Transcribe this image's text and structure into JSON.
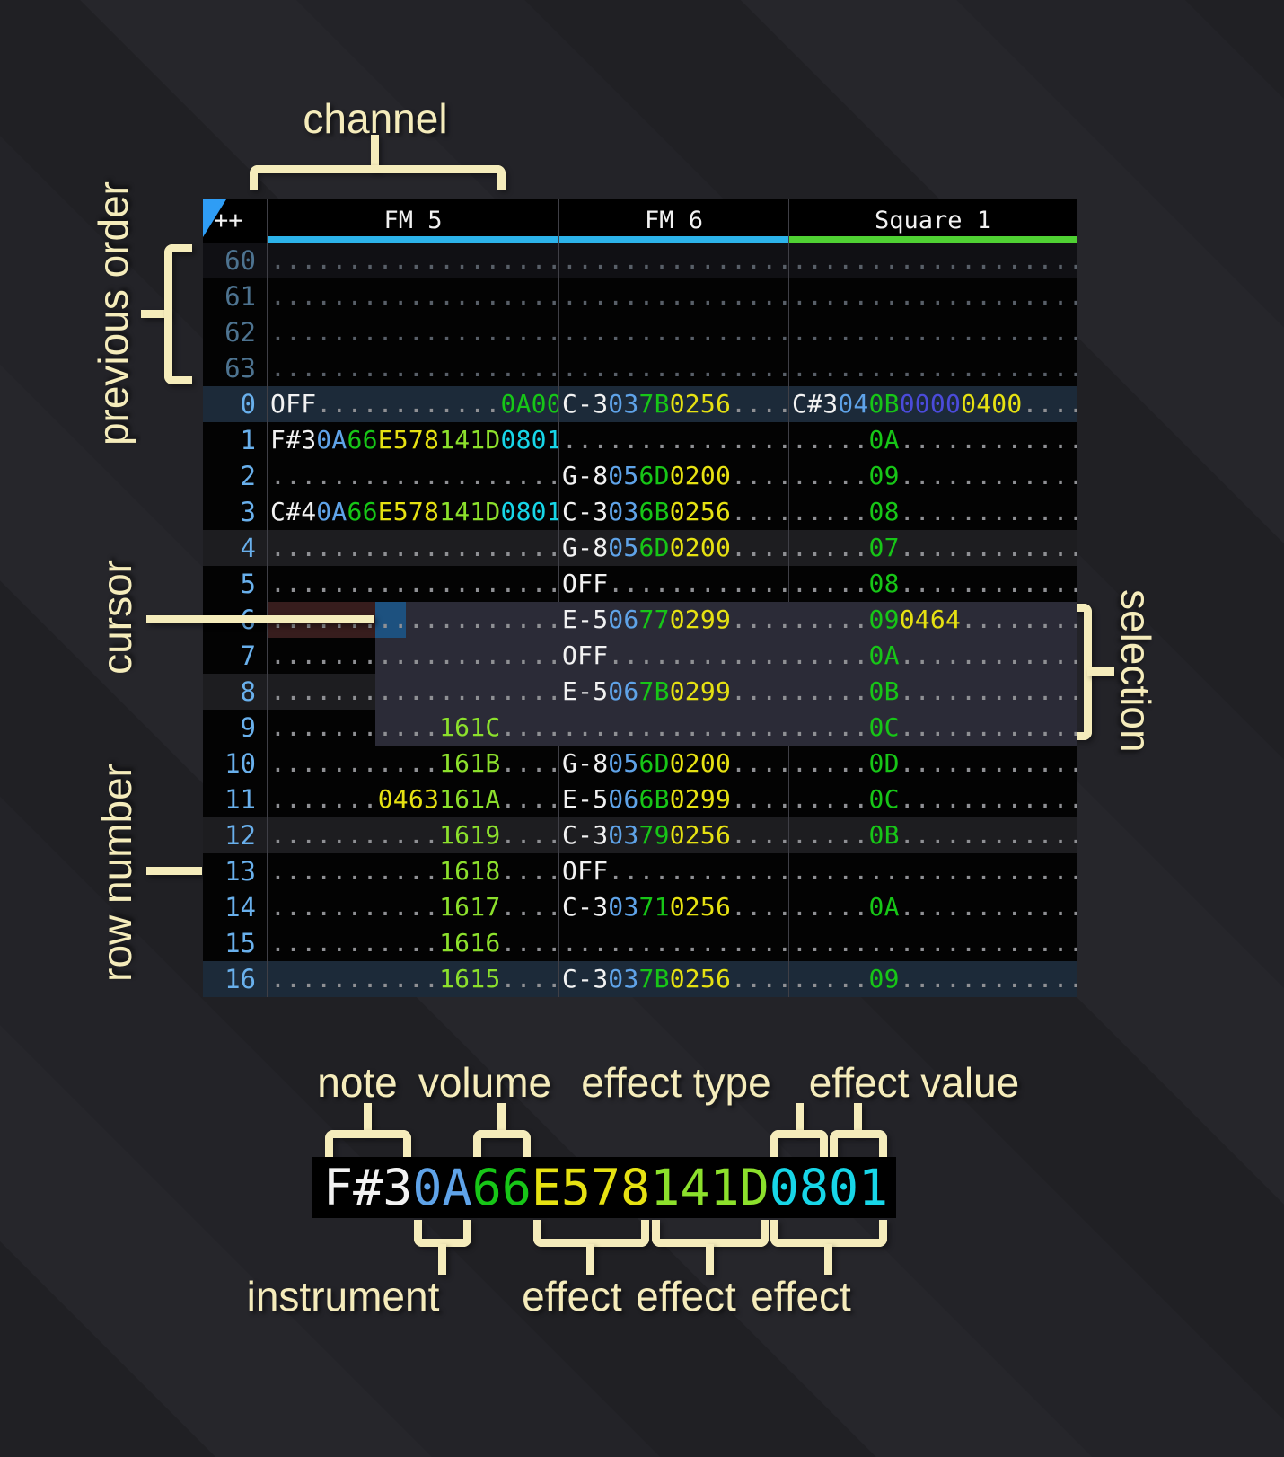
{
  "annotations": {
    "channel": "channel",
    "previous_order": "previous order",
    "cursor": "cursor",
    "row_number": "row number",
    "selection": "selection",
    "note": "note",
    "volume": "volume",
    "effect_type": "effect type",
    "effect_value": "effect value",
    "instrument": "instrument",
    "effect1": "effect",
    "effect2": "effect",
    "effect3": "effect"
  },
  "pattern": {
    "corner": "++",
    "channels": [
      {
        "label": "FM 5",
        "underline": "#2cb3ea"
      },
      {
        "label": "FM 6",
        "underline": "#2cb3ea"
      },
      {
        "label": "Square 1",
        "underline": "#4fd133"
      }
    ],
    "prev_rows": [
      {
        "num": "60",
        "bg": "prevminor"
      },
      {
        "num": "61",
        "bg": ""
      },
      {
        "num": "62",
        "bg": ""
      },
      {
        "num": "63",
        "bg": ""
      }
    ],
    "rows": [
      {
        "num": "0",
        "bg": "major",
        "fm5": [
          [
            "OFF",
            "n"
          ],
          [
            "............",
            "d"
          ],
          [
            "0A00",
            "v"
          ]
        ],
        "fm6": [
          [
            "C-3",
            "n"
          ],
          [
            "03",
            "i"
          ],
          [
            "7B",
            "v"
          ],
          [
            "0256",
            "y"
          ],
          [
            "....",
            "d"
          ]
        ],
        "sq1": [
          [
            "C#3",
            "n"
          ],
          [
            "04",
            "i"
          ],
          [
            "0B",
            "v"
          ],
          [
            "0000",
            "p"
          ],
          [
            "0400",
            "y"
          ],
          [
            "....",
            "d"
          ]
        ]
      },
      {
        "num": "1",
        "bg": "",
        "fm5": [
          [
            "F#3",
            "n"
          ],
          [
            "0A",
            "i"
          ],
          [
            "66",
            "v"
          ],
          [
            "E578",
            "y"
          ],
          [
            "141D",
            "l"
          ],
          [
            "0801",
            "c"
          ]
        ],
        "fm6": [
          [
            "...............",
            "d"
          ]
        ],
        "sq1": [
          [
            ".....",
            "d"
          ],
          [
            "0A",
            "v"
          ],
          [
            "............",
            "d"
          ]
        ]
      },
      {
        "num": "2",
        "bg": "",
        "fm5": [
          [
            "...................",
            "d"
          ]
        ],
        "fm6": [
          [
            "G-8",
            "n"
          ],
          [
            "05",
            "i"
          ],
          [
            "6D",
            "v"
          ],
          [
            "0200",
            "y"
          ],
          [
            "....",
            "d"
          ]
        ],
        "sq1": [
          [
            ".....",
            "d"
          ],
          [
            "09",
            "v"
          ],
          [
            "............",
            "d"
          ]
        ]
      },
      {
        "num": "3",
        "bg": "",
        "fm5": [
          [
            "C#4",
            "n"
          ],
          [
            "0A",
            "i"
          ],
          [
            "66",
            "v"
          ],
          [
            "E578",
            "y"
          ],
          [
            "141D",
            "l"
          ],
          [
            "0801",
            "c"
          ]
        ],
        "fm6": [
          [
            "C-3",
            "n"
          ],
          [
            "03",
            "i"
          ],
          [
            "6B",
            "v"
          ],
          [
            "0256",
            "y"
          ],
          [
            "....",
            "d"
          ]
        ],
        "sq1": [
          [
            ".....",
            "d"
          ],
          [
            "08",
            "v"
          ],
          [
            "............",
            "d"
          ]
        ]
      },
      {
        "num": "4",
        "bg": "minor",
        "fm5": [
          [
            "...................",
            "d"
          ]
        ],
        "fm6": [
          [
            "G-8",
            "n"
          ],
          [
            "05",
            "i"
          ],
          [
            "6D",
            "v"
          ],
          [
            "0200",
            "y"
          ],
          [
            "....",
            "d"
          ]
        ],
        "sq1": [
          [
            ".....",
            "d"
          ],
          [
            "07",
            "v"
          ],
          [
            "............",
            "d"
          ]
        ]
      },
      {
        "num": "5",
        "bg": "",
        "fm5": [
          [
            "...................",
            "d"
          ]
        ],
        "fm6": [
          [
            "OFF",
            "n"
          ],
          [
            "............",
            "d"
          ]
        ],
        "sq1": [
          [
            ".....",
            "d"
          ],
          [
            "08",
            "v"
          ],
          [
            "............",
            "d"
          ]
        ]
      },
      {
        "num": "6",
        "bg": "",
        "fm5": [
          [
            "...................",
            "d"
          ]
        ],
        "fm6": [
          [
            "E-5",
            "n"
          ],
          [
            "06",
            "i"
          ],
          [
            "77",
            "v"
          ],
          [
            "0299",
            "y"
          ],
          [
            "....",
            "d"
          ]
        ],
        "sq1": [
          [
            ".....",
            "d"
          ],
          [
            "09",
            "v"
          ],
          [
            "0464",
            "y"
          ],
          [
            "........",
            "d"
          ]
        ]
      },
      {
        "num": "7",
        "bg": "",
        "fm5": [
          [
            "...................",
            "d"
          ]
        ],
        "fm6": [
          [
            "OFF",
            "n"
          ],
          [
            "............",
            "d"
          ]
        ],
        "sq1": [
          [
            ".....",
            "d"
          ],
          [
            "0A",
            "v"
          ],
          [
            "............",
            "d"
          ]
        ]
      },
      {
        "num": "8",
        "bg": "minor",
        "fm5": [
          [
            "...................",
            "d"
          ]
        ],
        "fm6": [
          [
            "E-5",
            "n"
          ],
          [
            "06",
            "i"
          ],
          [
            "7B",
            "v"
          ],
          [
            "0299",
            "y"
          ],
          [
            "....",
            "d"
          ]
        ],
        "sq1": [
          [
            ".....",
            "d"
          ],
          [
            "0B",
            "v"
          ],
          [
            "............",
            "d"
          ]
        ]
      },
      {
        "num": "9",
        "bg": "",
        "fm5": [
          [
            "...........",
            "d"
          ],
          [
            "161C",
            "l"
          ],
          [
            "....",
            "d"
          ]
        ],
        "fm6": [
          [
            "...............",
            "d"
          ]
        ],
        "sq1": [
          [
            ".....",
            "d"
          ],
          [
            "0C",
            "v"
          ],
          [
            "............",
            "d"
          ]
        ]
      },
      {
        "num": "10",
        "bg": "",
        "fm5": [
          [
            "...........",
            "d"
          ],
          [
            "161B",
            "l"
          ],
          [
            "....",
            "d"
          ]
        ],
        "fm6": [
          [
            "G-8",
            "n"
          ],
          [
            "05",
            "i"
          ],
          [
            "6D",
            "v"
          ],
          [
            "0200",
            "y"
          ],
          [
            "....",
            "d"
          ]
        ],
        "sq1": [
          [
            ".....",
            "d"
          ],
          [
            "0D",
            "v"
          ],
          [
            "............",
            "d"
          ]
        ]
      },
      {
        "num": "11",
        "bg": "",
        "fm5": [
          [
            ".......",
            "d"
          ],
          [
            "0463",
            "y"
          ],
          [
            "161A",
            "l"
          ],
          [
            "....",
            "d"
          ]
        ],
        "fm6": [
          [
            "E-5",
            "n"
          ],
          [
            "06",
            "i"
          ],
          [
            "6B",
            "v"
          ],
          [
            "0299",
            "y"
          ],
          [
            "....",
            "d"
          ]
        ],
        "sq1": [
          [
            ".....",
            "d"
          ],
          [
            "0C",
            "v"
          ],
          [
            "............",
            "d"
          ]
        ]
      },
      {
        "num": "12",
        "bg": "minor",
        "fm5": [
          [
            "...........",
            "d"
          ],
          [
            "1619",
            "l"
          ],
          [
            "....",
            "d"
          ]
        ],
        "fm6": [
          [
            "C-3",
            "n"
          ],
          [
            "03",
            "i"
          ],
          [
            "79",
            "v"
          ],
          [
            "0256",
            "y"
          ],
          [
            "....",
            "d"
          ]
        ],
        "sq1": [
          [
            ".....",
            "d"
          ],
          [
            "0B",
            "v"
          ],
          [
            "............",
            "d"
          ]
        ]
      },
      {
        "num": "13",
        "bg": "",
        "fm5": [
          [
            "...........",
            "d"
          ],
          [
            "1618",
            "l"
          ],
          [
            "....",
            "d"
          ]
        ],
        "fm6": [
          [
            "OFF",
            "n"
          ],
          [
            "............",
            "d"
          ]
        ],
        "sq1": [
          [
            "...................",
            "d"
          ]
        ]
      },
      {
        "num": "14",
        "bg": "",
        "fm5": [
          [
            "...........",
            "d"
          ],
          [
            "1617",
            "l"
          ],
          [
            "....",
            "d"
          ]
        ],
        "fm6": [
          [
            "C-3",
            "n"
          ],
          [
            "03",
            "i"
          ],
          [
            "71",
            "v"
          ],
          [
            "0256",
            "y"
          ],
          [
            "....",
            "d"
          ]
        ],
        "sq1": [
          [
            ".....",
            "d"
          ],
          [
            "0A",
            "v"
          ],
          [
            "............",
            "d"
          ]
        ]
      },
      {
        "num": "15",
        "bg": "",
        "fm5": [
          [
            "...........",
            "d"
          ],
          [
            "1616",
            "l"
          ],
          [
            "....",
            "d"
          ]
        ],
        "fm6": [
          [
            "...............",
            "d"
          ]
        ],
        "sq1": [
          [
            "...................",
            "d"
          ]
        ]
      },
      {
        "num": "16",
        "bg": "major",
        "fm5": [
          [
            "...........",
            "d"
          ],
          [
            "1615",
            "l"
          ],
          [
            "....",
            "d"
          ]
        ],
        "fm6": [
          [
            "C-3",
            "n"
          ],
          [
            "03",
            "i"
          ],
          [
            "7B",
            "v"
          ],
          [
            "0256",
            "y"
          ],
          [
            "....",
            "d"
          ]
        ],
        "sq1": [
          [
            ".....",
            "d"
          ],
          [
            "09",
            "v"
          ],
          [
            "............",
            "d"
          ]
        ]
      }
    ]
  },
  "state": {
    "cursor_row": 6,
    "cursor_channel": "FM 5",
    "cursor_column": "effect-1-type",
    "selection_from_row": 6,
    "selection_to_row": 9
  },
  "legend": {
    "segments": [
      [
        "F#3",
        "n"
      ],
      [
        "0A",
        "i"
      ],
      [
        "66",
        "v"
      ],
      [
        "E578",
        "y"
      ],
      [
        "141D",
        "l"
      ],
      [
        "0801",
        "c"
      ]
    ]
  },
  "colors": {
    "text": {
      "n": "#f2f2f2",
      "i": "#5fa3e8",
      "v": "#17c617",
      "y": "#e6e112",
      "l": "#8ce02c",
      "c": "#17d6e8",
      "p": "#4b4bdb",
      "d": "#8f9094",
      "pd": "#585f68"
    },
    "css_vars": {
      "cream": "#f5ecbb",
      "cursor": "#1d517f",
      "sel": "#2b2b37",
      "maroon": "#371d1d",
      "major": "#1c2a39",
      "minor": "#1d1d20",
      "rownum": "#69b0ec",
      "prevnum": "#4d7390",
      "divider": "#3f3f46",
      "tablebg": "#030303"
    }
  }
}
